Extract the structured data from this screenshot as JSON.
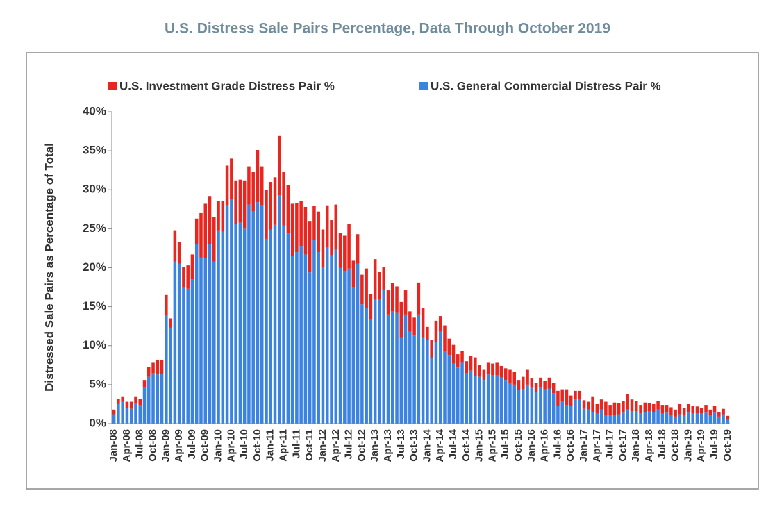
{
  "chart_data": {
    "type": "stacked_bar",
    "title": "U.S. Distress Sale Pairs Percentage, Data Through October 2019",
    "y_label": "Distressed Sale Pairs as Percentage of Total",
    "categories": [
      "Jan-08",
      null,
      null,
      "Apr-08",
      null,
      null,
      "Jul-08",
      null,
      null,
      "Oct-08",
      null,
      null,
      "Jan-09",
      null,
      null,
      "Apr-09",
      null,
      null,
      "Jul-09",
      null,
      null,
      "Oct-09",
      null,
      null,
      "Jan-10",
      null,
      null,
      "Apr-10",
      null,
      null,
      "Jul-10",
      null,
      null,
      "Oct-10",
      null,
      null,
      "Jan-11",
      null,
      null,
      "Apr-11",
      null,
      null,
      "Jul-11",
      null,
      null,
      "Oct-11",
      null,
      null,
      "Jan-12",
      null,
      null,
      "Apr-12",
      null,
      null,
      "Jul-12",
      null,
      null,
      "Oct-12",
      null,
      null,
      "Jan-13",
      null,
      null,
      "Apr-13",
      null,
      null,
      "Jul-13",
      null,
      null,
      "Oct-13",
      null,
      null,
      "Jan-14",
      null,
      null,
      "Apr-14",
      null,
      null,
      "Jul-14",
      null,
      null,
      "Oct-14",
      null,
      null,
      "Jan-15",
      null,
      null,
      "Apr-15",
      null,
      null,
      "Jul-15",
      null,
      null,
      "Oct-15",
      null,
      null,
      "Jan-16",
      null,
      null,
      "Apr-16",
      null,
      null,
      "Jul-16",
      null,
      null,
      "Oct-16",
      null,
      null,
      "Jan-17",
      null,
      null,
      "Apr-17",
      null,
      null,
      "Jul-17",
      null,
      null,
      "Oct-17",
      null,
      null,
      "Jan-18",
      null,
      null,
      "Apr-18",
      null,
      null,
      "Jul-18",
      null,
      null,
      "Oct-18",
      null,
      null,
      "Jan-19",
      null,
      null,
      "Apr-19",
      null,
      null,
      "Jul-19",
      null,
      null,
      "Oct-19"
    ],
    "series": [
      {
        "name": "U.S. Investment Grade Distress Pair %",
        "color": "#e8261f",
        "values": [
          0.6,
          0.7,
          0.7,
          0.8,
          0.9,
          0.9,
          0.8,
          1.0,
          1.3,
          1.3,
          1.9,
          1.8,
          2.6,
          1.2,
          4.0,
          2.8,
          2.6,
          3.0,
          3.2,
          3.3,
          5.7,
          7.0,
          6.2,
          5.7,
          3.8,
          4.0,
          5.1,
          5.2,
          5.6,
          5.5,
          6.2,
          4.9,
          5.1,
          6.7,
          5.0,
          6.3,
          6.1,
          6.1,
          7.6,
          6.9,
          6.2,
          6.7,
          6.3,
          5.8,
          6.1,
          6.6,
          4.3,
          5.2,
          4.8,
          5.3,
          4.5,
          5.8,
          4.5,
          4.5,
          5.7,
          3.4,
          3.8,
          3.8,
          5.1,
          3.3,
          5.1,
          3.5,
          2.9,
          3.1,
          3.6,
          3.4,
          4.6,
          3.1,
          2.6,
          2.3,
          4.1,
          3.8,
          1.7,
          2.3,
          2.7,
          1.9,
          3.3,
          2.1,
          2.4,
          1.7,
          1.5,
          1.5,
          1.9,
          2.4,
          1.5,
          1.3,
          1.5,
          1.5,
          1.6,
          1.5,
          1.5,
          1.7,
          1.6,
          1.3,
          1.6,
          1.9,
          1.2,
          1.1,
          1.3,
          1.1,
          1.4,
          1.3,
          1.9,
          1.5,
          2.0,
          1.3,
          1.1,
          1.0,
          1.1,
          1.0,
          2.0,
          1.2,
          1.3,
          1.8,
          1.3,
          1.6,
          1.4,
          1.5,
          2.0,
          1.5,
          1.3,
          1.1,
          1.2,
          1.0,
          1.0,
          1.1,
          1.1,
          1.0,
          1.0,
          0.9,
          1.3,
          0.9,
          1.1,
          1.0,
          0.9,
          0.7,
          1.0,
          0.7,
          0.9,
          0.6,
          0.7,
          0.4
        ]
      },
      {
        "name": "U.S. General Commercial Distress Pair %",
        "color": "#3a83e0",
        "values": [
          1.2,
          2.5,
          2.8,
          2.0,
          1.9,
          2.6,
          2.4,
          4.6,
          6.0,
          6.5,
          6.3,
          6.4,
          13.9,
          12.3,
          20.8,
          20.5,
          17.5,
          17.3,
          18.5,
          23.0,
          21.3,
          21.2,
          23.0,
          20.8,
          24.8,
          24.6,
          28.0,
          28.8,
          25.6,
          25.8,
          25.0,
          28.1,
          27.2,
          28.4,
          28.0,
          23.7,
          24.9,
          25.5,
          29.3,
          25.4,
          24.4,
          21.5,
          22.0,
          22.8,
          21.7,
          19.4,
          23.6,
          22.0,
          20.1,
          22.7,
          21.6,
          22.3,
          20.0,
          19.6,
          19.9,
          17.5,
          20.5,
          15.3,
          14.8,
          13.3,
          16.0,
          16.0,
          17.2,
          14.0,
          14.4,
          14.2,
          11.0,
          14.0,
          11.8,
          11.3,
          14.0,
          11.0,
          10.7,
          8.4,
          10.5,
          11.9,
          9.3,
          8.8,
          7.7,
          7.2,
          7.8,
          6.5,
          6.8,
          6.1,
          6.0,
          5.6,
          6.3,
          6.2,
          6.2,
          5.9,
          5.6,
          5.2,
          5.0,
          4.3,
          4.4,
          5.0,
          4.6,
          4.1,
          4.6,
          4.4,
          4.5,
          3.9,
          2.3,
          2.9,
          2.4,
          2.3,
          3.1,
          3.2,
          1.9,
          1.8,
          1.5,
          1.3,
          1.8,
          1.0,
          1.1,
          1.1,
          1.2,
          1.4,
          1.8,
          1.6,
          1.6,
          1.3,
          1.5,
          1.6,
          1.5,
          1.8,
          1.3,
          1.4,
          1.1,
          0.9,
          1.2,
          1.1,
          1.4,
          1.3,
          1.3,
          1.3,
          1.4,
          1.1,
          1.4,
          0.9,
          1.2,
          0.6
        ]
      }
    ],
    "ylim": [
      0,
      40
    ],
    "yticks": [
      {
        "value": 0,
        "label": "0%"
      },
      {
        "value": 5,
        "label": "5%"
      },
      {
        "value": 10,
        "label": "10%"
      },
      {
        "value": 15,
        "label": "15%"
      },
      {
        "value": 20,
        "label": "20%"
      },
      {
        "value": 25,
        "label": "25%"
      },
      {
        "value": 30,
        "label": "30%"
      },
      {
        "value": 35,
        "label": "35%"
      },
      {
        "value": 40,
        "label": "40%"
      }
    ],
    "legend": "top"
  }
}
